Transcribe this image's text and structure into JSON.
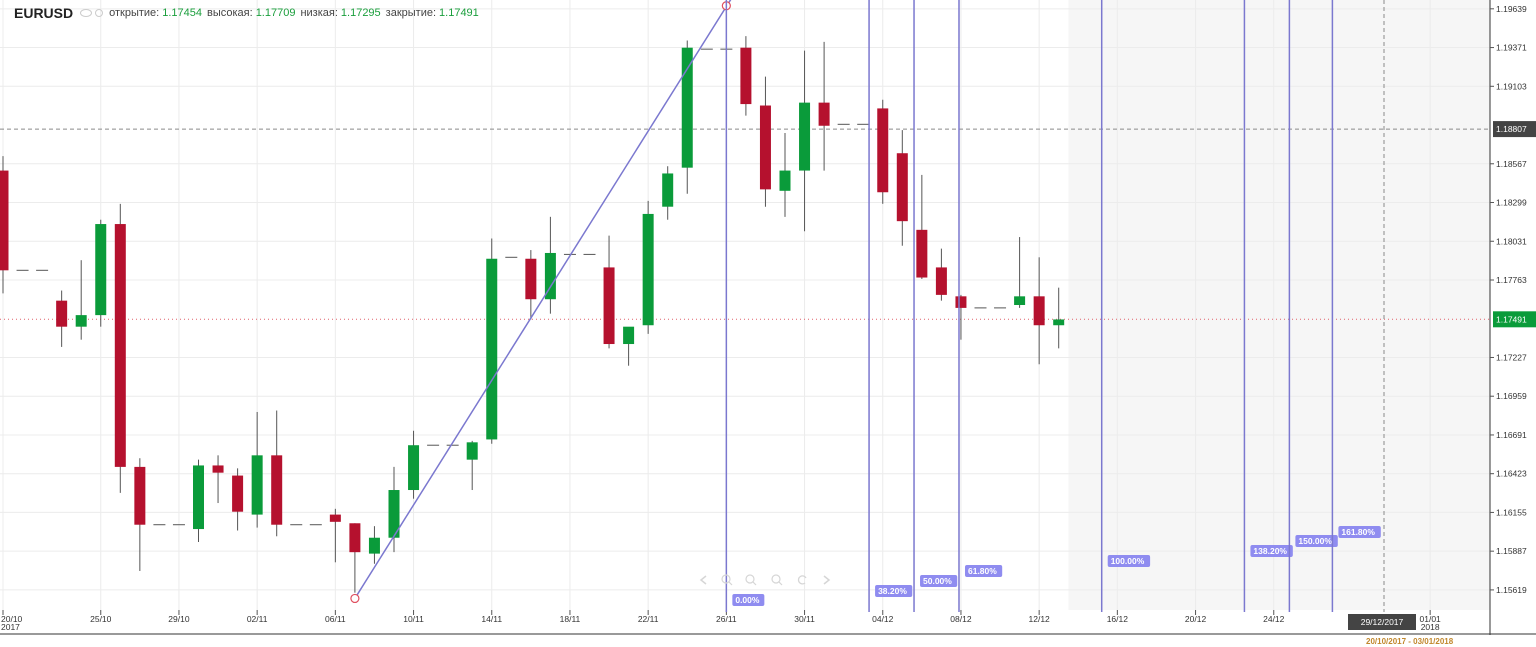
{
  "header": {
    "symbol": "EURUSD",
    "open_label": "открытие:",
    "open_value": "1.17454",
    "high_label": "высокая:",
    "high_value": "1.17709",
    "low_label": "низкая:",
    "low_value": "1.17295",
    "close_label": "закрытие:",
    "close_value": "1.17491"
  },
  "range_label": "20/10/2017 - 03/01/2018",
  "colors": {
    "up": "#0a9b3a",
    "down": "#b5112e",
    "fib": "#7b78cf",
    "fib_label_bg": "#8f8cf0",
    "price_tag": "#0a9b3a",
    "crosshair_tag": "#444444"
  },
  "chart_data": {
    "type": "candlestick",
    "symbol": "EURUSD",
    "ylim": [
      1.1548,
      1.197
    ],
    "y_ticks": [
      "1.19639",
      "1.19371",
      "1.19103",
      "1.18567",
      "1.18299",
      "1.18031",
      "1.17763",
      "1.17227",
      "1.16959",
      "1.16691",
      "1.16423",
      "1.16155",
      "1.15887",
      "1.15619"
    ],
    "x_tick_labels": [
      {
        "label": "20/10",
        "sub": "2017",
        "day": 0
      },
      {
        "label": "25/10",
        "day": 5
      },
      {
        "label": "29/10",
        "day": 9
      },
      {
        "label": "02/11",
        "day": 13
      },
      {
        "label": "06/11",
        "day": 17
      },
      {
        "label": "10/11",
        "day": 21
      },
      {
        "label": "14/11",
        "day": 25
      },
      {
        "label": "18/11",
        "day": 29
      },
      {
        "label": "22/11",
        "day": 33
      },
      {
        "label": "26/11",
        "day": 37
      },
      {
        "label": "30/11",
        "day": 41
      },
      {
        "label": "04/12",
        "day": 45
      },
      {
        "label": "08/12",
        "day": 49
      },
      {
        "label": "12/12",
        "day": 53
      },
      {
        "label": "16/12",
        "day": 57
      },
      {
        "label": "20/12",
        "day": 61
      },
      {
        "label": "24/12",
        "day": 65
      },
      {
        "label": "01/01",
        "sub": "2018",
        "day": 73
      }
    ],
    "candles": [
      {
        "day": 0,
        "o": 1.1852,
        "h": 1.1862,
        "l": 1.1767,
        "c": 1.1783
      },
      {
        "day": 1,
        "o": 1.1783,
        "h": 1.1783,
        "l": 1.1783,
        "c": 1.1783
      },
      {
        "day": 2,
        "o": 1.1783,
        "h": 1.1783,
        "l": 1.1783,
        "c": 1.1783
      },
      {
        "day": 3,
        "o": 1.1762,
        "h": 1.1769,
        "l": 1.173,
        "c": 1.1744
      },
      {
        "day": 4,
        "o": 1.1744,
        "h": 1.179,
        "l": 1.1735,
        "c": 1.1752
      },
      {
        "day": 5,
        "o": 1.1752,
        "h": 1.1818,
        "l": 1.1744,
        "c": 1.1815
      },
      {
        "day": 6,
        "o": 1.1815,
        "h": 1.1829,
        "l": 1.1629,
        "c": 1.1647
      },
      {
        "day": 7,
        "o": 1.1647,
        "h": 1.1653,
        "l": 1.1575,
        "c": 1.1607
      },
      {
        "day": 8,
        "o": 1.1607,
        "h": 1.1607,
        "l": 1.1607,
        "c": 1.1607
      },
      {
        "day": 9,
        "o": 1.1607,
        "h": 1.1607,
        "l": 1.1607,
        "c": 1.1607
      },
      {
        "day": 10,
        "o": 1.1604,
        "h": 1.1652,
        "l": 1.1595,
        "c": 1.1648
      },
      {
        "day": 11,
        "o": 1.1648,
        "h": 1.1655,
        "l": 1.1622,
        "c": 1.1643
      },
      {
        "day": 12,
        "o": 1.1641,
        "h": 1.1646,
        "l": 1.1603,
        "c": 1.1616
      },
      {
        "day": 13,
        "o": 1.1614,
        "h": 1.1685,
        "l": 1.1605,
        "c": 1.1655
      },
      {
        "day": 14,
        "o": 1.1655,
        "h": 1.1686,
        "l": 1.1599,
        "c": 1.1607
      },
      {
        "day": 15,
        "o": 1.1607,
        "h": 1.1607,
        "l": 1.1607,
        "c": 1.1607
      },
      {
        "day": 16,
        "o": 1.1607,
        "h": 1.1607,
        "l": 1.1607,
        "c": 1.1607
      },
      {
        "day": 17,
        "o": 1.1614,
        "h": 1.1618,
        "l": 1.1581,
        "c": 1.1609
      },
      {
        "day": 18,
        "o": 1.1608,
        "h": 1.1608,
        "l": 1.156,
        "c": 1.1588
      },
      {
        "day": 19,
        "o": 1.1587,
        "h": 1.1606,
        "l": 1.158,
        "c": 1.1598
      },
      {
        "day": 20,
        "o": 1.1598,
        "h": 1.1647,
        "l": 1.1588,
        "c": 1.1631
      },
      {
        "day": 21,
        "o": 1.1631,
        "h": 1.1672,
        "l": 1.1625,
        "c": 1.1662
      },
      {
        "day": 22,
        "o": 1.1662,
        "h": 1.1662,
        "l": 1.1662,
        "c": 1.1662
      },
      {
        "day": 23,
        "o": 1.1662,
        "h": 1.1662,
        "l": 1.1662,
        "c": 1.1662
      },
      {
        "day": 24,
        "o": 1.1652,
        "h": 1.1665,
        "l": 1.1631,
        "c": 1.1664
      },
      {
        "day": 25,
        "o": 1.1666,
        "h": 1.1805,
        "l": 1.1663,
        "c": 1.1791
      },
      {
        "day": 26,
        "o": 1.1792,
        "h": 1.1792,
        "l": 1.1791,
        "c": 1.1792
      },
      {
        "day": 27,
        "o": 1.1791,
        "h": 1.1797,
        "l": 1.1749,
        "c": 1.1763
      },
      {
        "day": 28,
        "o": 1.1763,
        "h": 1.182,
        "l": 1.1753,
        "c": 1.1795
      },
      {
        "day": 29,
        "o": 1.1794,
        "h": 1.1794,
        "l": 1.1794,
        "c": 1.1794
      },
      {
        "day": 30,
        "o": 1.1794,
        "h": 1.1794,
        "l": 1.1794,
        "c": 1.1794
      },
      {
        "day": 31,
        "o": 1.1785,
        "h": 1.1807,
        "l": 1.1729,
        "c": 1.1732
      },
      {
        "day": 32,
        "o": 1.1732,
        "h": 1.1742,
        "l": 1.1717,
        "c": 1.1744
      },
      {
        "day": 33,
        "o": 1.1745,
        "h": 1.1831,
        "l": 1.1739,
        "c": 1.1822
      },
      {
        "day": 34,
        "o": 1.1827,
        "h": 1.1855,
        "l": 1.1818,
        "c": 1.185
      },
      {
        "day": 35,
        "o": 1.1854,
        "h": 1.1942,
        "l": 1.1836,
        "c": 1.1937
      },
      {
        "day": 36,
        "o": 1.1936,
        "h": 1.1936,
        "l": 1.1936,
        "c": 1.1936
      },
      {
        "day": 37,
        "o": 1.1936,
        "h": 1.1936,
        "l": 1.1936,
        "c": 1.1936
      },
      {
        "day": 38,
        "o": 1.1937,
        "h": 1.1945,
        "l": 1.189,
        "c": 1.1898
      },
      {
        "day": 39,
        "o": 1.1897,
        "h": 1.1917,
        "l": 1.1827,
        "c": 1.1839
      },
      {
        "day": 40,
        "o": 1.1838,
        "h": 1.1878,
        "l": 1.182,
        "c": 1.1852
      },
      {
        "day": 41,
        "o": 1.1852,
        "h": 1.1935,
        "l": 1.181,
        "c": 1.1899
      },
      {
        "day": 42,
        "o": 1.1899,
        "h": 1.1941,
        "l": 1.1852,
        "c": 1.1883
      },
      {
        "day": 43,
        "o": 1.1884,
        "h": 1.1884,
        "l": 1.1884,
        "c": 1.1884
      },
      {
        "day": 44,
        "o": 1.1884,
        "h": 1.1884,
        "l": 1.1884,
        "c": 1.1884
      },
      {
        "day": 45,
        "o": 1.1895,
        "h": 1.1901,
        "l": 1.1829,
        "c": 1.1837
      },
      {
        "day": 46,
        "o": 1.1864,
        "h": 1.188,
        "l": 1.18,
        "c": 1.1817
      },
      {
        "day": 47,
        "o": 1.1811,
        "h": 1.1849,
        "l": 1.1777,
        "c": 1.1778
      },
      {
        "day": 48,
        "o": 1.1785,
        "h": 1.1798,
        "l": 1.1762,
        "c": 1.1766
      },
      {
        "day": 49,
        "o": 1.1765,
        "h": 1.1766,
        "l": 1.1735,
        "c": 1.1757
      },
      {
        "day": 50,
        "o": 1.1757,
        "h": 1.1757,
        "l": 1.1757,
        "c": 1.1757
      },
      {
        "day": 51,
        "o": 1.1757,
        "h": 1.1757,
        "l": 1.1757,
        "c": 1.1757
      },
      {
        "day": 52,
        "o": 1.1759,
        "h": 1.1806,
        "l": 1.1757,
        "c": 1.1765
      },
      {
        "day": 53,
        "o": 1.1765,
        "h": 1.1792,
        "l": 1.1718,
        "c": 1.1745
      },
      {
        "day": 54,
        "o": 1.1745,
        "h": 1.1771,
        "l": 1.1729,
        "c": 1.1749
      }
    ],
    "current_price": "1.17491",
    "current_price_value": 1.17491,
    "crosshair_price": "1.18807",
    "crosshair_price_value": 1.18807,
    "crosshair_date": "29/12/2017",
    "trendline": {
      "from_day": 18,
      "from_price": 1.1556,
      "to_day": 37,
      "to_price": 1.1966
    },
    "fib_time_zones": [
      {
        "label": "0.00%",
        "day": 37.0
      },
      {
        "label": "38.20%",
        "day": 44.3
      },
      {
        "label": "50.00%",
        "day": 46.6
      },
      {
        "label": "61.80%",
        "day": 48.9
      },
      {
        "label": "100.00%",
        "day": 56.2
      },
      {
        "label": "138.20%",
        "day": 63.5
      },
      {
        "label": "150.00%",
        "day": 65.8
      },
      {
        "label": "161.80%",
        "day": 68.0
      }
    ],
    "future_shade_start_day": 54.5,
    "nav_icons": [
      "chevron-left-icon",
      "zoom-out-icon",
      "zoom-reset-icon",
      "zoom-in-icon",
      "refresh-icon",
      "chevron-right-icon"
    ]
  }
}
